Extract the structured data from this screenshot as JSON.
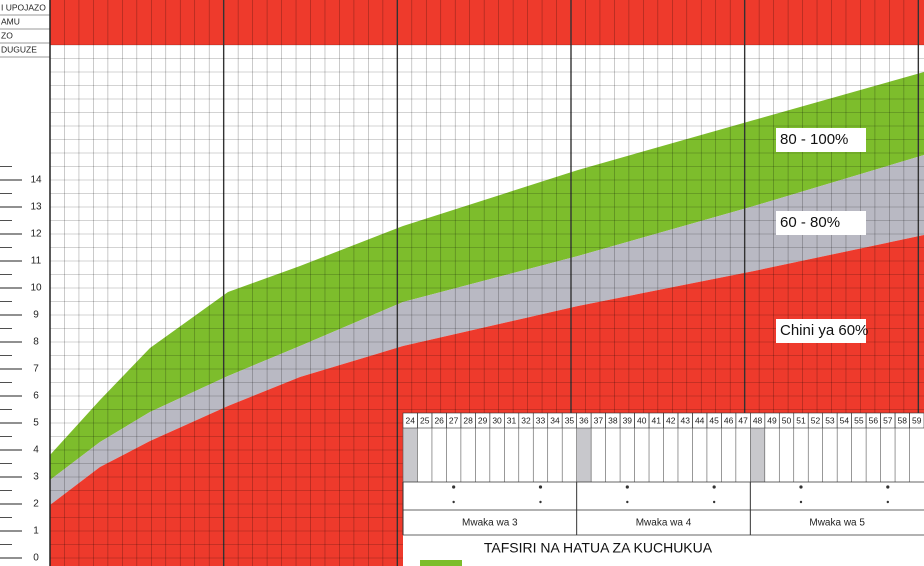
{
  "header_rows": [
    "I UPOJAZO",
    "AMU",
    "ZO",
    "DUGUZE"
  ],
  "y_axis": {
    "ticks": [
      0,
      1,
      2,
      3,
      4,
      5,
      6,
      7,
      8,
      9,
      10,
      11,
      12,
      13,
      14
    ]
  },
  "months": [
    24,
    25,
    26,
    27,
    28,
    29,
    30,
    31,
    32,
    33,
    34,
    35,
    36,
    37,
    38,
    39,
    40,
    41,
    42,
    43,
    44,
    45,
    46,
    47,
    48,
    49,
    50,
    51,
    52,
    53,
    54,
    55,
    56,
    57,
    58,
    59
  ],
  "years": [
    "Mwaka wa 3",
    "Mwaka wa 4",
    "Mwaka wa 5"
  ],
  "band_labels": [
    "80 - 100%",
    "60 - 80%",
    "Chini ya 60%"
  ],
  "legend_title": "TAFSIRI NA HATUA ZA KUCHUKUA"
}
